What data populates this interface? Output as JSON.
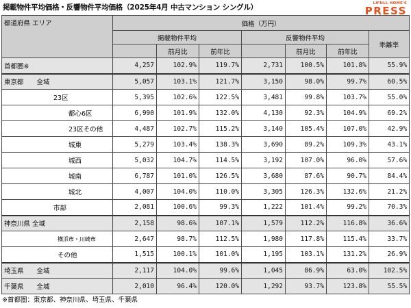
{
  "title": "掲載物件平均価格・反響物件平均価格（2025年4月 中古マンション シングル）",
  "logo": {
    "small": "LIFULL HOME'S",
    "big": "PRESS",
    "color": "#e8501e"
  },
  "header": {
    "area": "都道府県 エリア",
    "price": "価格（万円）",
    "listed": "掲載物件平均",
    "response": "反響物件平均",
    "divergence": "乖離率",
    "mom": "前月比",
    "yoy": "前年比"
  },
  "rows": [
    {
      "area": "首都圏※",
      "lp": "4,257",
      "lmom": "102.9%",
      "lyoy": "119.7%",
      "rp": "2,731",
      "rmom": "100.5%",
      "ryoy": "101.8%",
      "div": "55.9%"
    },
    {
      "area": "東京都　　全域",
      "lp": "5,057",
      "lmom": "103.1%",
      "lyoy": "121.7%",
      "rp": "3,150",
      "rmom": "98.0%",
      "ryoy": "99.7%",
      "div": "60.5%"
    },
    {
      "area": "23区",
      "lp": "5,395",
      "lmom": "102.6%",
      "lyoy": "122.5%",
      "rp": "3,481",
      "rmom": "99.8%",
      "ryoy": "103.7%",
      "div": "55.0%"
    },
    {
      "area": "都心6区",
      "lp": "6,990",
      "lmom": "101.9%",
      "lyoy": "132.0%",
      "rp": "4,130",
      "rmom": "92.3%",
      "ryoy": "104.9%",
      "div": "69.2%"
    },
    {
      "area": "23区その他",
      "lp": "4,487",
      "lmom": "102.7%",
      "lyoy": "115.2%",
      "rp": "3,140",
      "rmom": "105.4%",
      "ryoy": "107.0%",
      "div": "42.9%"
    },
    {
      "area": "城東",
      "lp": "5,279",
      "lmom": "103.4%",
      "lyoy": "138.3%",
      "rp": "3,690",
      "rmom": "89.2%",
      "ryoy": "109.3%",
      "div": "43.1%"
    },
    {
      "area": "城西",
      "lp": "5,032",
      "lmom": "104.7%",
      "lyoy": "114.5%",
      "rp": "3,192",
      "rmom": "107.0%",
      "ryoy": "96.0%",
      "div": "57.6%"
    },
    {
      "area": "城南",
      "lp": "6,787",
      "lmom": "101.0%",
      "lyoy": "126.5%",
      "rp": "3,680",
      "rmom": "87.6%",
      "ryoy": "90.7%",
      "div": "84.4%"
    },
    {
      "area": "城北",
      "lp": "4,007",
      "lmom": "104.0%",
      "lyoy": "110.0%",
      "rp": "3,305",
      "rmom": "126.3%",
      "ryoy": "132.6%",
      "div": "21.2%"
    },
    {
      "area": "市部",
      "lp": "2,081",
      "lmom": "100.6%",
      "lyoy": "99.3%",
      "rp": "1,222",
      "rmom": "101.4%",
      "ryoy": "99.2%",
      "div": "70.3%"
    },
    {
      "area": "神奈川県 全域",
      "lp": "2,158",
      "lmom": "98.6%",
      "lyoy": "107.1%",
      "rp": "1,579",
      "rmom": "112.2%",
      "ryoy": "116.8%",
      "div": "36.6%"
    },
    {
      "area": "横浜市・川崎市",
      "lp": "2,647",
      "lmom": "98.7%",
      "lyoy": "112.5%",
      "rp": "1,980",
      "rmom": "117.8%",
      "ryoy": "115.4%",
      "div": "33.7%"
    },
    {
      "area": "その他",
      "lp": "1,515",
      "lmom": "100.1%",
      "lyoy": "101.0%",
      "rp": "1,195",
      "rmom": "103.1%",
      "ryoy": "131.2%",
      "div": "26.9%"
    },
    {
      "area": "埼玉県　　全域",
      "lp": "2,117",
      "lmom": "104.0%",
      "lyoy": "99.6%",
      "rp": "1,045",
      "rmom": "86.9%",
      "ryoy": "63.0%",
      "div": "102.5%"
    },
    {
      "area": "千葉県　　全域",
      "lp": "2,010",
      "lmom": "96.4%",
      "lyoy": "120.0%",
      "rp": "1,292",
      "rmom": "93.7%",
      "ryoy": "123.8%",
      "div": "55.5%"
    }
  ],
  "footnote": "※首都圏：東京都、神奈川県、埼玉県、千葉県"
}
